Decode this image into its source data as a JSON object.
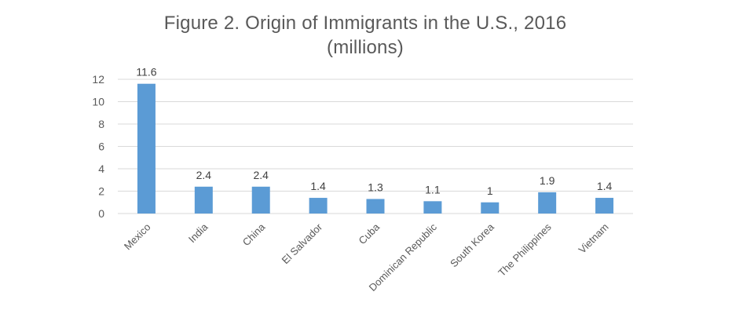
{
  "chart_data": {
    "type": "bar",
    "title_line1": "Figure 2. Origin of Immigrants in the U.S., 2016",
    "title_line2": "(millions)",
    "categories": [
      "Mexico",
      "India",
      "China",
      "El Salvador",
      "Cuba",
      "Dominican Republic",
      "South Korea",
      "The Philippines",
      "Vietnam"
    ],
    "values": [
      11.6,
      2.4,
      2.4,
      1.4,
      1.3,
      1.1,
      1,
      1.9,
      1.4
    ],
    "data_labels": [
      "11.6",
      "2.4",
      "2.4",
      "1.4",
      "1.3",
      "1.1",
      "1",
      "1.9",
      "1.4"
    ],
    "ylim": [
      0,
      12
    ],
    "yticks": [
      0,
      2,
      4,
      6,
      8,
      10,
      12
    ],
    "grid": true,
    "legend": "none",
    "colors": {
      "bar": "#5b9bd5",
      "grid": "#d9d9d9",
      "text": "#595959"
    }
  }
}
